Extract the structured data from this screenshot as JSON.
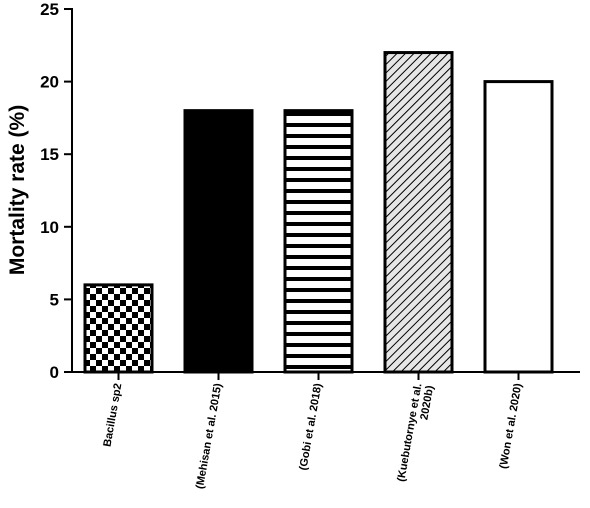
{
  "chart_data": {
    "type": "bar",
    "title": "",
    "xlabel": "",
    "ylabel": "Mortality rate (%)",
    "ylim": [
      0,
      25
    ],
    "yticks": [
      0,
      5,
      10,
      15,
      20,
      25
    ],
    "grid": false,
    "categories": [
      [
        "Bacillus sp2"
      ],
      [
        "(Mehisan et al. 2015)"
      ],
      [
        "(Gobi et al. 2018)"
      ],
      [
        "(Kuebutornye et al.",
        "2020b)"
      ],
      [
        "(Won et al. 2020)"
      ]
    ],
    "values": [
      6,
      18,
      18,
      22,
      20
    ],
    "bar_fills": [
      "checkerboard",
      "solid-black",
      "horizontal-stripes",
      "diagonal-hatch",
      "white"
    ],
    "colors": {
      "stroke": "#000000",
      "background": "#ffffff",
      "hatch_bg": "#e6e6e6"
    }
  }
}
